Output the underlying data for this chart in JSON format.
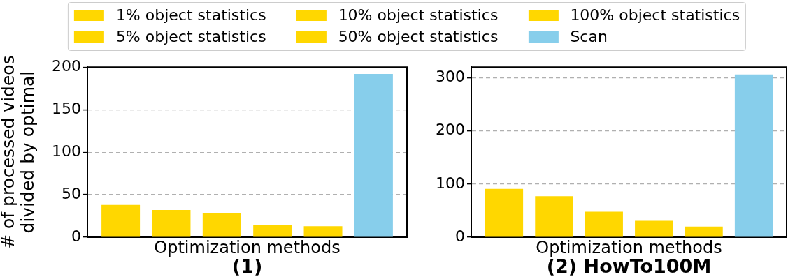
{
  "chart_data": [
    {
      "type": "bar",
      "title": "(1)",
      "xlabel": "Optimization methods",
      "ylabel": "# of processed videos\ndivided by optimal",
      "categories": [
        null
      ],
      "series": [
        {
          "name": "1% object statistics",
          "color": "#ffd700",
          "values": [
            38
          ]
        },
        {
          "name": "5% object statistics",
          "color": "#ffd700",
          "values": [
            32
          ]
        },
        {
          "name": "10% object statistics",
          "color": "#ffd700",
          "values": [
            28
          ]
        },
        {
          "name": "50% object statistics",
          "color": "#ffd700",
          "values": [
            14
          ]
        },
        {
          "name": "100% object statistics",
          "color": "#ffd700",
          "values": [
            13
          ]
        },
        {
          "name": "Scan",
          "color": "#87ceeb",
          "values": [
            192
          ]
        }
      ],
      "ylim": [
        0,
        200
      ],
      "yticks": [
        0,
        50,
        100,
        150,
        200
      ],
      "grid": "y",
      "legend": "top",
      "tick_labels": "y"
    },
    {
      "type": "bar",
      "title": "(2) HowTo100M",
      "xlabel": "Optimization methods",
      "categories": [
        null
      ],
      "series": [
        {
          "color": "#ffd700",
          "values": [
            91
          ]
        },
        {
          "color": "#ffd700",
          "values": [
            77
          ]
        },
        {
          "color": "#ffd700",
          "values": [
            48
          ]
        },
        {
          "color": "#ffd700",
          "values": [
            31
          ]
        },
        {
          "color": "#ffd700",
          "values": [
            20
          ]
        },
        {
          "color": "#87ceeb",
          "values": [
            306
          ]
        }
      ],
      "ylim": [
        0,
        320
      ],
      "yticks": [
        0,
        100,
        200,
        300
      ],
      "grid": "y",
      "tick_labels": "y"
    }
  ]
}
